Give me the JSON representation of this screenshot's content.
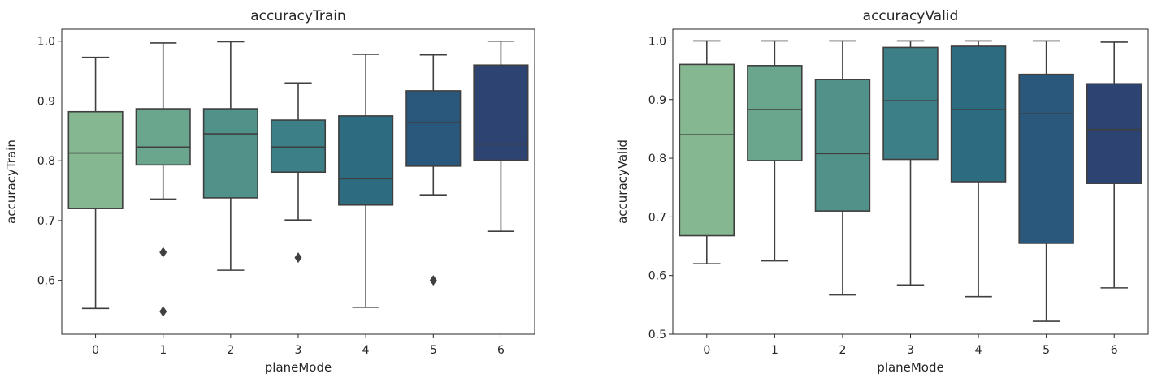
{
  "chart_data": [
    {
      "type": "box",
      "title": "accuracyTrain",
      "xlabel": "planeMode",
      "ylabel": "accuracyTrain",
      "ylim": [
        0.51,
        1.02
      ],
      "yticks": [
        0.6,
        0.7,
        0.8,
        0.9,
        1.0
      ],
      "ytick_labels": [
        "0.6",
        "0.7",
        "0.8",
        "0.9",
        "1.0"
      ],
      "categories": [
        "0",
        "1",
        "2",
        "3",
        "4",
        "5",
        "6"
      ],
      "colors": [
        "#85b891",
        "#6aa68e",
        "#50918a",
        "#3d7f86",
        "#2d6b81",
        "#2a577c",
        "#2d4473"
      ],
      "boxes": [
        {
          "whislo": 0.553,
          "q1": 0.72,
          "med": 0.813,
          "q3": 0.882,
          "whishi": 0.973,
          "fliers": []
        },
        {
          "whislo": 0.736,
          "q1": 0.793,
          "med": 0.823,
          "q3": 0.887,
          "whishi": 0.997,
          "fliers": [
            0.647,
            0.548
          ]
        },
        {
          "whislo": 0.617,
          "q1": 0.738,
          "med": 0.845,
          "q3": 0.887,
          "whishi": 0.999,
          "fliers": []
        },
        {
          "whislo": 0.701,
          "q1": 0.781,
          "med": 0.823,
          "q3": 0.868,
          "whishi": 0.93,
          "fliers": [
            0.638
          ]
        },
        {
          "whislo": 0.555,
          "q1": 0.726,
          "med": 0.77,
          "q3": 0.875,
          "whishi": 0.978,
          "fliers": []
        },
        {
          "whislo": 0.743,
          "q1": 0.791,
          "med": 0.864,
          "q3": 0.917,
          "whishi": 0.977,
          "fliers": [
            0.6
          ]
        },
        {
          "whislo": 0.682,
          "q1": 0.801,
          "med": 0.828,
          "q3": 0.96,
          "whishi": 1.0,
          "fliers": []
        }
      ]
    },
    {
      "type": "box",
      "title": "accuracyValid",
      "xlabel": "planeMode",
      "ylabel": "accuracyValid",
      "ylim": [
        0.5,
        1.02
      ],
      "yticks": [
        0.5,
        0.6,
        0.7,
        0.8,
        0.9,
        1.0
      ],
      "ytick_labels": [
        "0.5",
        "0.6",
        "0.7",
        "0.8",
        "0.9",
        "1.0"
      ],
      "categories": [
        "0",
        "1",
        "2",
        "3",
        "4",
        "5",
        "6"
      ],
      "colors": [
        "#85b891",
        "#6aa68e",
        "#50918a",
        "#3d7f86",
        "#2d6b81",
        "#2a577c",
        "#2d4473"
      ],
      "boxes": [
        {
          "whislo": 0.62,
          "q1": 0.668,
          "med": 0.84,
          "q3": 0.96,
          "whishi": 1.0,
          "fliers": []
        },
        {
          "whislo": 0.625,
          "q1": 0.796,
          "med": 0.883,
          "q3": 0.958,
          "whishi": 1.0,
          "fliers": []
        },
        {
          "whislo": 0.567,
          "q1": 0.71,
          "med": 0.808,
          "q3": 0.934,
          "whishi": 1.0,
          "fliers": []
        },
        {
          "whislo": 0.584,
          "q1": 0.798,
          "med": 0.898,
          "q3": 0.989,
          "whishi": 1.0,
          "fliers": []
        },
        {
          "whislo": 0.564,
          "q1": 0.76,
          "med": 0.883,
          "q3": 0.991,
          "whishi": 1.0,
          "fliers": []
        },
        {
          "whislo": 0.522,
          "q1": 0.655,
          "med": 0.876,
          "q3": 0.943,
          "whishi": 1.0,
          "fliers": []
        },
        {
          "whislo": 0.579,
          "q1": 0.757,
          "med": 0.849,
          "q3": 0.927,
          "whishi": 0.998,
          "fliers": []
        }
      ]
    }
  ]
}
